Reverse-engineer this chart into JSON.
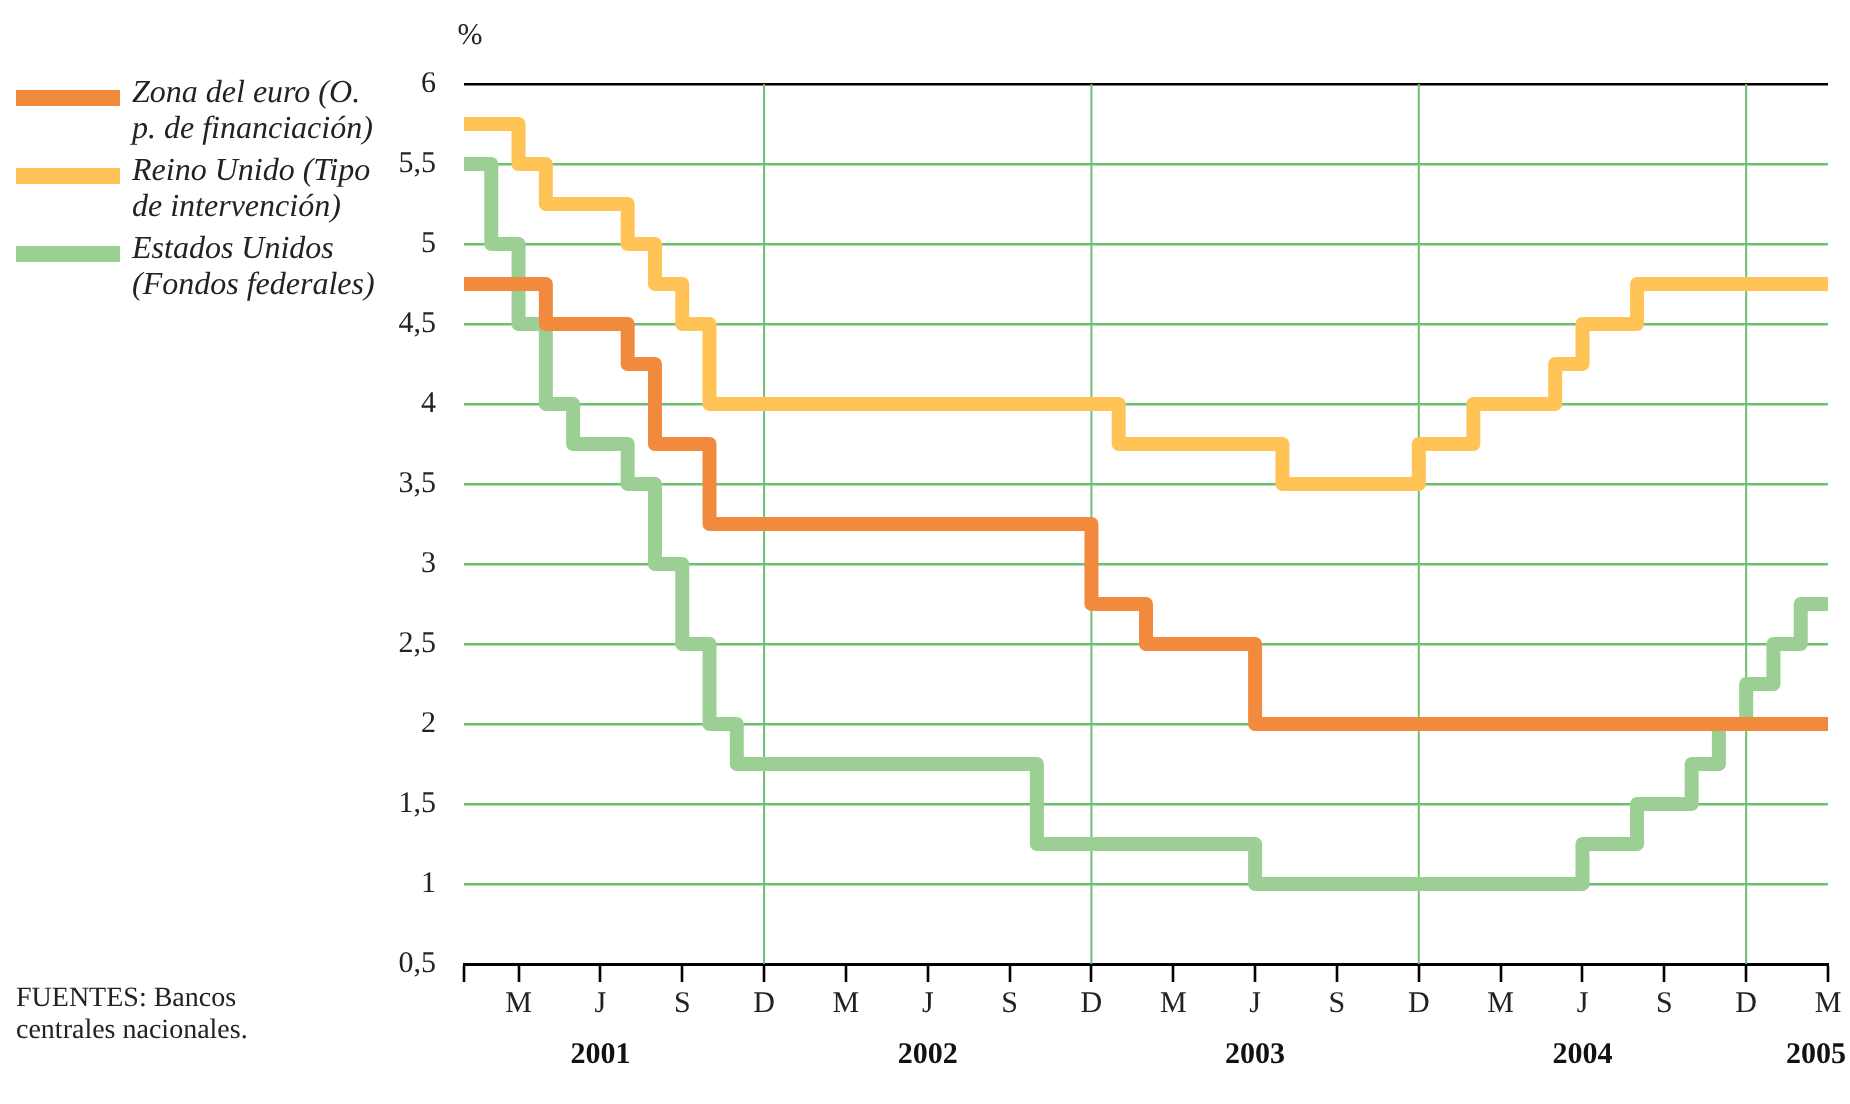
{
  "chart_data": {
    "type": "step",
    "ylabel": "%",
    "categories": [
      null,
      null,
      "M",
      null,
      null,
      "J\n2001",
      null,
      null,
      "S",
      null,
      null,
      "D",
      null,
      null,
      "M",
      null,
      null,
      "J\n2002",
      null,
      null,
      "S",
      null,
      null,
      "D",
      null,
      null,
      "M",
      null,
      null,
      "J\n2003",
      null,
      null,
      "S",
      null,
      null,
      "D",
      null,
      null,
      "M",
      null,
      null,
      "J\n2004",
      null,
      null,
      "S",
      null,
      null,
      "D",
      null,
      null,
      "M\n2005"
    ],
    "series": [
      {
        "name": "Zona del euro (O. p. de financiación)",
        "color": "#f28a3e",
        "values": [
          4.75,
          4.75,
          4.75,
          4.5,
          4.5,
          4.5,
          4.25,
          3.75,
          3.75,
          3.25,
          3.25,
          3.25,
          3.25,
          3.25,
          3.25,
          3.25,
          3.25,
          3.25,
          3.25,
          3.25,
          3.25,
          3.25,
          3.25,
          2.75,
          2.75,
          2.5,
          2.5,
          2.5,
          2.5,
          2.0,
          2.0,
          2.0,
          2.0,
          2.0,
          2.0,
          2.0,
          2.0,
          2.0,
          2.0,
          2.0,
          2.0,
          2.0,
          2.0,
          2.0,
          2.0,
          2.0,
          2.0,
          2.0,
          2.0,
          2.0,
          2.0
        ]
      },
      {
        "name": "Reino Unido (Tipo de intervención)",
        "color": "#ffc455",
        "values": [
          5.75,
          5.75,
          5.5,
          5.25,
          5.25,
          5.25,
          5.0,
          4.75,
          4.5,
          4.0,
          4.0,
          4.0,
          4.0,
          4.0,
          4.0,
          4.0,
          4.0,
          4.0,
          4.0,
          4.0,
          4.0,
          4.0,
          4.0,
          4.0,
          3.75,
          3.75,
          3.75,
          3.75,
          3.75,
          3.75,
          3.5,
          3.5,
          3.5,
          3.5,
          3.5,
          3.75,
          3.75,
          4.0,
          4.0,
          4.0,
          4.25,
          4.5,
          4.5,
          4.75,
          4.75,
          4.75,
          4.75,
          4.75,
          4.75,
          4.75,
          4.75
        ]
      },
      {
        "name": "Estados Unidos (Fondos federales)",
        "color": "#9bcf93",
        "values": [
          5.5,
          5.0,
          4.5,
          4.0,
          3.75,
          3.75,
          3.5,
          3.0,
          2.5,
          2.0,
          1.75,
          1.75,
          1.75,
          1.75,
          1.75,
          1.75,
          1.75,
          1.75,
          1.75,
          1.75,
          1.75,
          1.25,
          1.25,
          1.25,
          1.25,
          1.25,
          1.25,
          1.25,
          1.25,
          1.0,
          1.0,
          1.0,
          1.0,
          1.0,
          1.0,
          1.0,
          1.0,
          1.0,
          1.0,
          1.0,
          1.0,
          1.25,
          1.25,
          1.5,
          1.5,
          1.75,
          2.0,
          2.25,
          2.5,
          2.75,
          2.75
        ]
      }
    ],
    "ylim": [
      0.5,
      6
    ],
    "yticks": [
      {
        "value": 0.5,
        "label": "0,5"
      },
      1,
      {
        "value": 1.5,
        "label": "1,5"
      },
      2,
      {
        "value": 2.5,
        "label": "2,5"
      },
      3,
      {
        "value": 3.5,
        "label": "3,5"
      },
      4,
      {
        "value": 4.5,
        "label": "4,5"
      },
      5,
      {
        "value": 5.5,
        "label": "5,5"
      },
      6
    ],
    "grid": true,
    "legend": "left",
    "marker": "none",
    "line_style": "solid",
    "annotations": [
      "FUENTES: Bancos centrales nacionales."
    ]
  }
}
